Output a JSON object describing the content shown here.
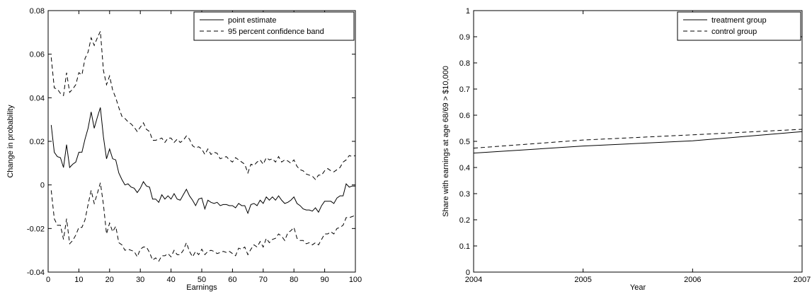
{
  "chart_data": [
    {
      "type": "line",
      "title": "",
      "xlabel": "Earnings",
      "ylabel": "Change in probability",
      "xlim": [
        0,
        100
      ],
      "ylim": [
        -0.04,
        0.08
      ],
      "xticks": [
        0,
        10,
        20,
        30,
        40,
        50,
        60,
        70,
        80,
        90,
        100
      ],
      "yticks": [
        -0.04,
        -0.02,
        0,
        0.02,
        0.04,
        0.06,
        0.08
      ],
      "xtick_labels": [
        "0",
        "10",
        "20",
        "30",
        "40",
        "50",
        "60",
        "70",
        "80",
        "90",
        "100"
      ],
      "ytick_labels": [
        "-0.04",
        "-0.02",
        "0",
        "0.02",
        "0.04",
        "0.06",
        "0.08"
      ],
      "grid": false,
      "legend_position": "top-right",
      "x": [
        1,
        2,
        3,
        4,
        5,
        6,
        7,
        8,
        9,
        10,
        11,
        12,
        13,
        14,
        15,
        16,
        17,
        18,
        19,
        20,
        21,
        22,
        23,
        24,
        25,
        26,
        27,
        28,
        29,
        30,
        31,
        32,
        33,
        34,
        35,
        36,
        37,
        38,
        39,
        40,
        41,
        42,
        43,
        44,
        45,
        46,
        47,
        48,
        49,
        50,
        51,
        52,
        53,
        54,
        55,
        56,
        57,
        58,
        59,
        60,
        61,
        62,
        63,
        64,
        65,
        66,
        67,
        68,
        69,
        70,
        71,
        72,
        73,
        74,
        75,
        76,
        77,
        78,
        79,
        80,
        81,
        82,
        83,
        84,
        85,
        86,
        87,
        88,
        89,
        90,
        91,
        92,
        93,
        94,
        95,
        96,
        97,
        98,
        99,
        100
      ],
      "series": [
        {
          "name": "point estimate",
          "style": "solid",
          "values": [
            0.0275,
            0.015,
            0.013,
            0.0125,
            0.008,
            0.0185,
            0.008,
            0.0095,
            0.0105,
            0.015,
            0.015,
            0.021,
            0.026,
            0.0335,
            0.026,
            0.031,
            0.0355,
            0.022,
            0.012,
            0.0165,
            0.012,
            0.0115,
            0.0055,
            0.0025,
            0.0,
            0.0005,
            -0.001,
            -0.0015,
            -0.0035,
            -0.0015,
            0.0015,
            -0.0005,
            -0.001,
            -0.0065,
            -0.0065,
            -0.008,
            -0.0045,
            -0.0065,
            -0.005,
            -0.0065,
            -0.004,
            -0.0065,
            -0.007,
            -0.0045,
            -0.002,
            -0.005,
            -0.007,
            -0.0095,
            -0.0065,
            -0.006,
            -0.011,
            -0.007,
            -0.008,
            -0.0085,
            -0.008,
            -0.0095,
            -0.009,
            -0.009,
            -0.0095,
            -0.0095,
            -0.0105,
            -0.0085,
            -0.0095,
            -0.0095,
            -0.013,
            -0.009,
            -0.0085,
            -0.0095,
            -0.007,
            -0.0085,
            -0.0055,
            -0.007,
            -0.0055,
            -0.007,
            -0.005,
            -0.007,
            -0.0085,
            -0.008,
            -0.007,
            -0.0055,
            -0.0085,
            -0.0095,
            -0.011,
            -0.0115,
            -0.0115,
            -0.012,
            -0.0105,
            -0.0125,
            -0.0095,
            -0.0075,
            -0.0075,
            -0.0075,
            -0.0085,
            -0.006,
            -0.005,
            -0.005,
            0.0005,
            -0.001,
            -0.0005,
            -0.0005
          ]
        },
        {
          "name": "95 percent confidence band",
          "style": "dashed",
          "values": [
            0.0585,
            0.0445,
            0.044,
            0.042,
            0.041,
            0.0515,
            0.0425,
            0.044,
            0.046,
            0.0515,
            0.0505,
            0.058,
            0.061,
            0.0675,
            0.064,
            0.0675,
            0.0705,
            0.0525,
            0.046,
            0.05,
            0.0435,
            0.04,
            0.0355,
            0.0315,
            0.0305,
            0.029,
            0.028,
            0.0265,
            0.0245,
            0.0265,
            0.0285,
            0.0255,
            0.0245,
            0.0205,
            0.0205,
            0.021,
            0.0215,
            0.0195,
            0.0215,
            0.0215,
            0.0195,
            0.021,
            0.0195,
            0.0205,
            0.0225,
            0.021,
            0.018,
            0.017,
            0.0175,
            0.0165,
            0.014,
            0.0165,
            0.014,
            0.015,
            0.0145,
            0.012,
            0.0125,
            0.013,
            0.0115,
            0.0105,
            0.0125,
            0.0115,
            0.0105,
            0.0095,
            0.0055,
            0.0095,
            0.009,
            0.0105,
            0.0115,
            0.0095,
            0.0125,
            0.0115,
            0.012,
            0.0105,
            0.013,
            0.0105,
            0.0115,
            0.011,
            0.01,
            0.0115,
            0.0085,
            0.007,
            0.0065,
            0.005,
            0.0045,
            0.004,
            0.0025,
            0.0045,
            0.0045,
            0.0065,
            0.0075,
            0.0065,
            0.006,
            0.007,
            0.008,
            0.0105,
            0.0115,
            0.0135,
            0.013,
            0.0135
          ]
        },
        {
          "name": "",
          "style": "dashed",
          "values": [
            -0.0025,
            -0.0155,
            -0.0185,
            -0.0185,
            -0.025,
            -0.0155,
            -0.027,
            -0.0255,
            -0.023,
            -0.0195,
            -0.0195,
            -0.016,
            -0.009,
            -0.0025,
            -0.0085,
            -0.004,
            0.001,
            -0.009,
            -0.0225,
            -0.0175,
            -0.0215,
            -0.019,
            -0.0265,
            -0.0275,
            -0.03,
            -0.0295,
            -0.03,
            -0.0305,
            -0.033,
            -0.0295,
            -0.0285,
            -0.0285,
            -0.031,
            -0.0345,
            -0.0335,
            -0.035,
            -0.0325,
            -0.0325,
            -0.0315,
            -0.033,
            -0.03,
            -0.032,
            -0.032,
            -0.03,
            -0.0265,
            -0.0305,
            -0.033,
            -0.0305,
            -0.032,
            -0.0295,
            -0.032,
            -0.0305,
            -0.03,
            -0.0305,
            -0.0315,
            -0.031,
            -0.0305,
            -0.031,
            -0.0305,
            -0.0315,
            -0.0325,
            -0.029,
            -0.0295,
            -0.0285,
            -0.032,
            -0.0295,
            -0.0275,
            -0.0285,
            -0.026,
            -0.0285,
            -0.0245,
            -0.0265,
            -0.025,
            -0.0245,
            -0.0225,
            -0.0235,
            -0.0255,
            -0.022,
            -0.021,
            -0.0195,
            -0.0245,
            -0.0255,
            -0.0255,
            -0.027,
            -0.0265,
            -0.0275,
            -0.0265,
            -0.0275,
            -0.025,
            -0.0225,
            -0.0225,
            -0.0215,
            -0.0225,
            -0.02,
            -0.0195,
            -0.0185,
            -0.015,
            -0.015,
            -0.0145,
            -0.014
          ]
        }
      ]
    },
    {
      "type": "line",
      "title": "",
      "xlabel": "Year",
      "ylabel": "Share with earnings at age 68/69 > $10,000",
      "xlim": [
        2004,
        2007
      ],
      "ylim": [
        0,
        1
      ],
      "xticks": [
        2004,
        2005,
        2006,
        2007
      ],
      "yticks": [
        0,
        0.1,
        0.2,
        0.3,
        0.4,
        0.5,
        0.6,
        0.7,
        0.8,
        0.9,
        1
      ],
      "xtick_labels": [
        "2004",
        "2005",
        "2006",
        "2007"
      ],
      "ytick_labels": [
        "0",
        "0.1",
        "0.2",
        "0.3",
        "0.4",
        "0.5",
        "0.6",
        "0.7",
        "0.8",
        "0.9",
        "1"
      ],
      "grid": false,
      "legend_position": "top-right",
      "x": [
        2004,
        2005,
        2006,
        2007
      ],
      "series": [
        {
          "name": "treatment group",
          "style": "solid",
          "values": [
            0.455,
            0.482,
            0.502,
            0.537
          ]
        },
        {
          "name": "control group",
          "style": "dashed",
          "values": [
            0.474,
            0.505,
            0.525,
            0.546
          ]
        }
      ]
    }
  ]
}
